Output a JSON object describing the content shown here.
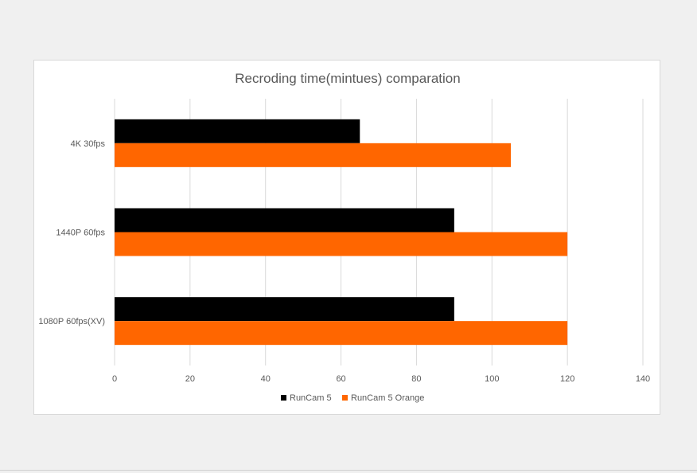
{
  "chart_data": {
    "type": "bar",
    "orientation": "horizontal",
    "title": "Recroding time(mintues) comparation",
    "categories": [
      "4K 30fps",
      "1440P 60fps",
      "1080P 60fps(XV)"
    ],
    "series": [
      {
        "name": "RunCam 5",
        "color": "#000000",
        "values": [
          65,
          90,
          90
        ]
      },
      {
        "name": "RunCam 5 Orange",
        "color": "#ff6600",
        "values": [
          105,
          120,
          120
        ]
      }
    ],
    "xlim": [
      0,
      140
    ],
    "xticks": [
      0,
      20,
      40,
      60,
      80,
      100,
      120,
      140
    ],
    "grid": true,
    "legend_position": "bottom"
  }
}
